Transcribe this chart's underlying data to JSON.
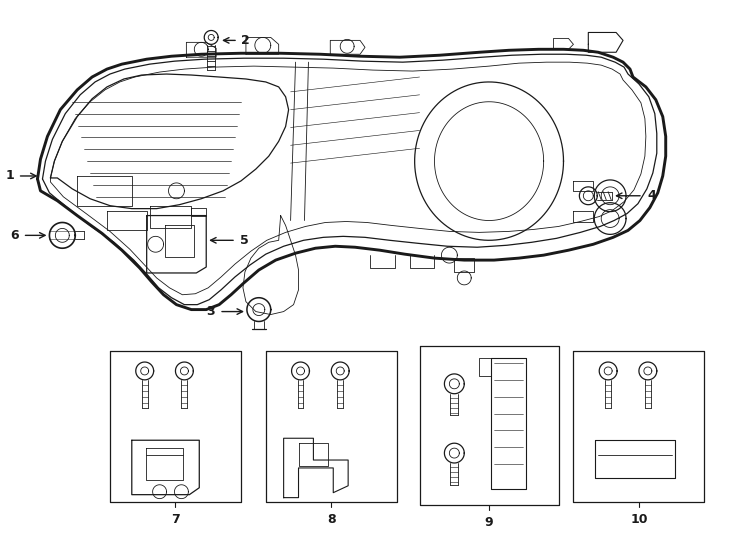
{
  "bg_color": "#ffffff",
  "line_color": "#1a1a1a",
  "fig_width": 7.34,
  "fig_height": 5.4,
  "dpi": 100,
  "lw_outer": 1.8,
  "lw_inner": 0.9,
  "lw_thin": 0.6,
  "label_fontsize": 9,
  "number_fontsize": 9
}
